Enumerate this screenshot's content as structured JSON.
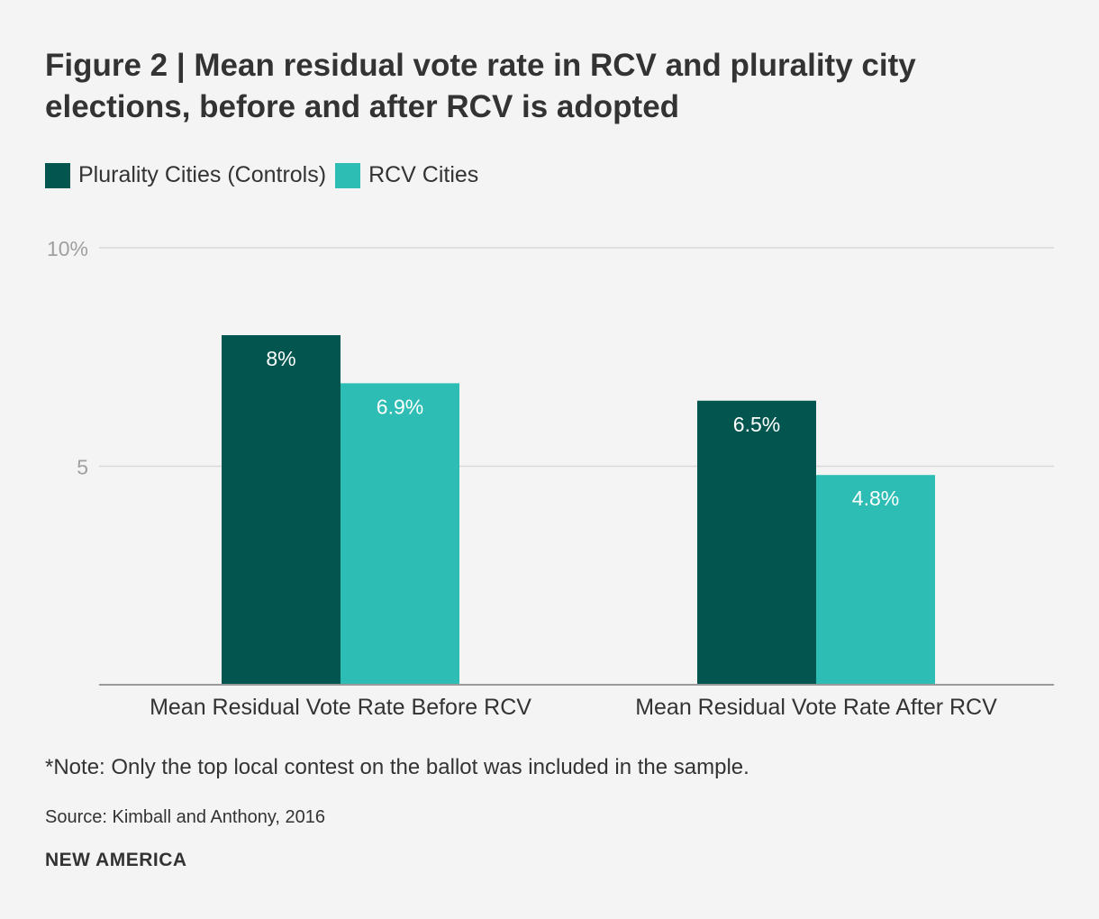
{
  "chart_data": {
    "type": "bar",
    "title": "Figure 2 | Mean residual vote rate in RCV and plurality city elections, before and after RCV is adopted",
    "categories": [
      "Mean Residual Vote Rate Before RCV",
      "Mean Residual Vote Rate After RCV"
    ],
    "series": [
      {
        "name": "Plurality Cities (Controls)",
        "values": [
          8,
          6.5
        ],
        "labels": [
          "8%",
          "6.5%"
        ],
        "color": "#02564f"
      },
      {
        "name": "RCV Cities",
        "values": [
          6.9,
          4.8
        ],
        "labels": [
          "6.9%",
          "4.8%"
        ],
        "color": "#2ebdb4"
      }
    ],
    "yticks": [
      {
        "value": 10,
        "label": "10%"
      },
      {
        "value": 5,
        "label": "5"
      }
    ],
    "ylim": [
      0,
      10
    ],
    "xlabel": "",
    "ylabel": "",
    "legend_position": "top-left",
    "grid": true
  },
  "footer": {
    "note": "*Note: Only the top local contest on the ballot was included in the sample.",
    "source": "Source: Kimball and Anthony, 2016",
    "brand": "NEW AMERICA"
  },
  "colors": {
    "grid": "#d9d9d9",
    "axis": "#999999",
    "tick_label": "#a0a0a0",
    "bar_label": "#ffffff"
  }
}
